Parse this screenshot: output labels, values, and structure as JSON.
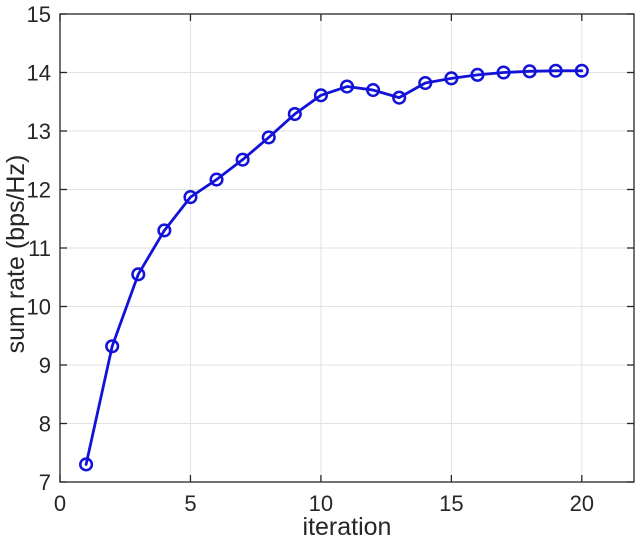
{
  "chart_data": {
    "type": "line",
    "title": "",
    "xlabel": "iteration",
    "ylabel": "sum rate (bps/Hz)",
    "x": [
      1,
      2,
      3,
      4,
      5,
      6,
      7,
      8,
      9,
      10,
      11,
      12,
      13,
      14,
      15,
      16,
      17,
      18,
      19,
      20
    ],
    "y": [
      7.3,
      9.32,
      10.55,
      11.3,
      11.87,
      12.17,
      12.51,
      12.89,
      13.29,
      13.61,
      13.76,
      13.7,
      13.57,
      13.82,
      13.9,
      13.96,
      14.0,
      14.02,
      14.03,
      14.03
    ],
    "xlim": [
      0,
      22
    ],
    "ylim": [
      7,
      15
    ],
    "xticks": [
      0,
      5,
      10,
      15,
      20
    ],
    "yticks": [
      7,
      8,
      9,
      10,
      11,
      12,
      13,
      14,
      15
    ],
    "grid": true,
    "legend": null,
    "series_name": "sum rate",
    "marker": "circle",
    "line_color": "#1212d8",
    "axis_color": "#262626",
    "grid_color": "#e2e2e2",
    "background": "#ffffff"
  }
}
